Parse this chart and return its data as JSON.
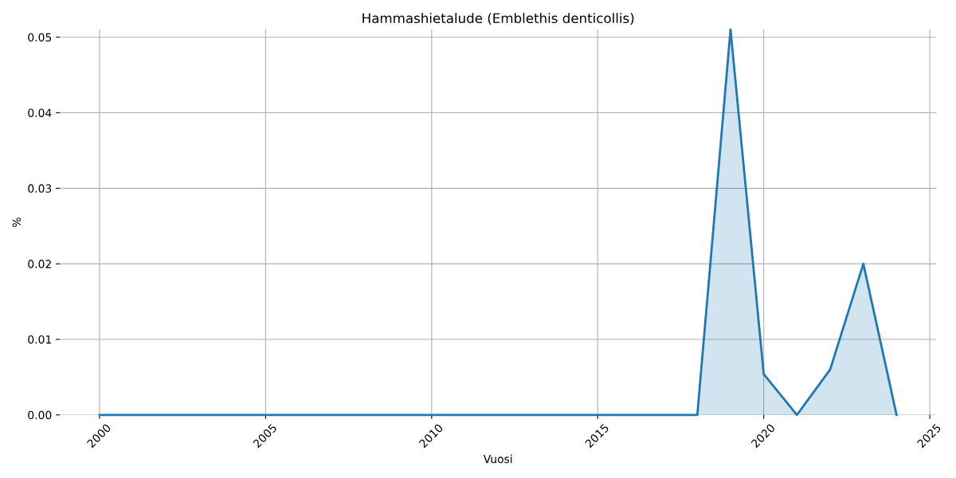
{
  "chart_data": {
    "type": "area",
    "title": "Hammashietalude (Emblethis denticollis)",
    "xlabel": "Vuosi",
    "ylabel": "%",
    "x": [
      2000,
      2001,
      2002,
      2003,
      2004,
      2005,
      2006,
      2007,
      2008,
      2009,
      2010,
      2011,
      2012,
      2013,
      2014,
      2015,
      2016,
      2017,
      2018,
      2019,
      2020,
      2021,
      2022,
      2023,
      2024
    ],
    "series": [
      {
        "color": "#1f77b4",
        "values": [
          0,
          0,
          0,
          0,
          0,
          0,
          0,
          0,
          0,
          0,
          0,
          0,
          0,
          0,
          0,
          0,
          0,
          0,
          0,
          0.051,
          0.0054,
          0,
          0.006,
          0.02,
          0
        ]
      }
    ],
    "xlim": [
      1998.8,
      2025.2
    ],
    "xticks": [
      2000,
      2005,
      2010,
      2015,
      2020,
      2025
    ],
    "ylim": [
      0,
      0.051
    ],
    "yticks": [
      {
        "value": 0,
        "label": "0.00"
      },
      {
        "value": 0.01,
        "label": "0.01"
      },
      {
        "value": 0.02,
        "label": "0.02"
      },
      {
        "value": 0.03,
        "label": "0.03"
      },
      {
        "value": 0.04,
        "label": "0.04"
      },
      {
        "value": 0.05,
        "label": "0.05"
      }
    ],
    "grid": true,
    "legend": false,
    "marker": "none",
    "line_style": "solid"
  }
}
